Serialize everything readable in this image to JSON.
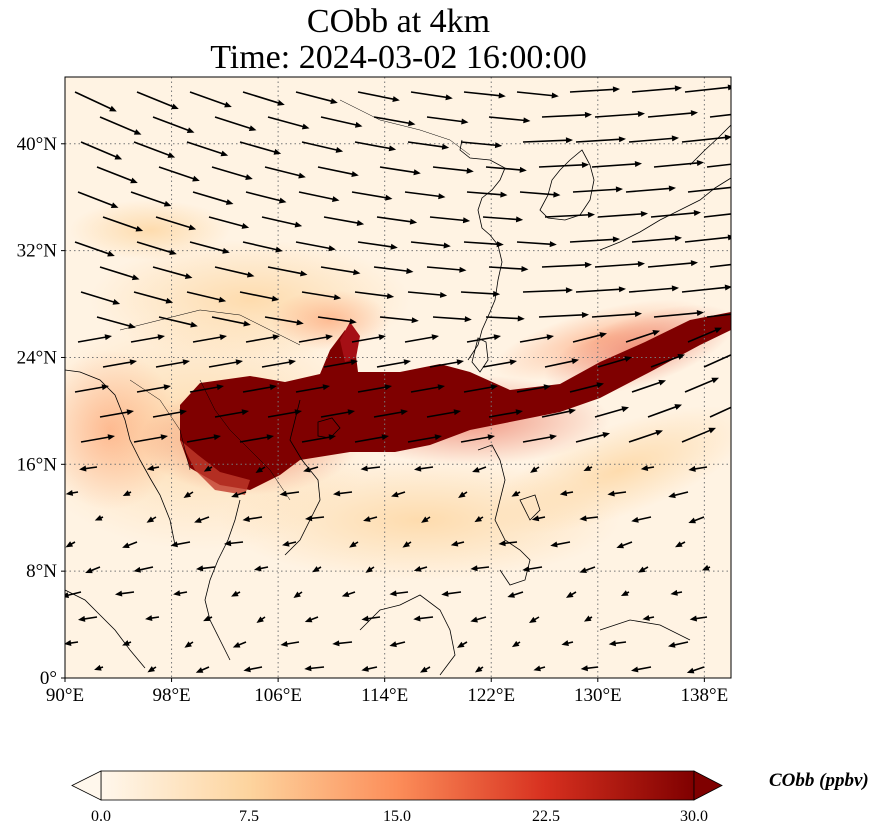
{
  "title": {
    "line1": "CObb at 4km",
    "line2": "Time: 2024-03-02 16:00:00"
  },
  "map": {
    "lon_range": [
      90,
      140
    ],
    "lat_range": [
      0,
      45
    ],
    "lon_ticks": [
      {
        "value": 90,
        "label": "90°E"
      },
      {
        "value": 98,
        "label": "98°E"
      },
      {
        "value": 106,
        "label": "106°E"
      },
      {
        "value": 114,
        "label": "114°E"
      },
      {
        "value": 122,
        "label": "122°E"
      },
      {
        "value": 130,
        "label": "130°E"
      },
      {
        "value": 138,
        "label": "138°E"
      }
    ],
    "lat_ticks": [
      {
        "value": 0,
        "label": "0°"
      },
      {
        "value": 8,
        "label": "8°N"
      },
      {
        "value": 16,
        "label": "16°N"
      },
      {
        "value": 24,
        "label": "24°N"
      },
      {
        "value": 32,
        "label": "32°N"
      },
      {
        "value": 40,
        "label": "40°N"
      }
    ],
    "gridlines": "dotted",
    "wind_vectors": "black arrows",
    "colormap": "OrRd"
  },
  "colorbar": {
    "label": "CObb (ppbv)",
    "min": 0.0,
    "max": 30.0,
    "ticks": [
      "0.0",
      "7.5",
      "15.0",
      "22.5",
      "30.0"
    ],
    "extend": "both",
    "colors": [
      "#fff7ec",
      "#fdd49e",
      "#fc8d59",
      "#d7301f",
      "#7f0000"
    ]
  }
}
